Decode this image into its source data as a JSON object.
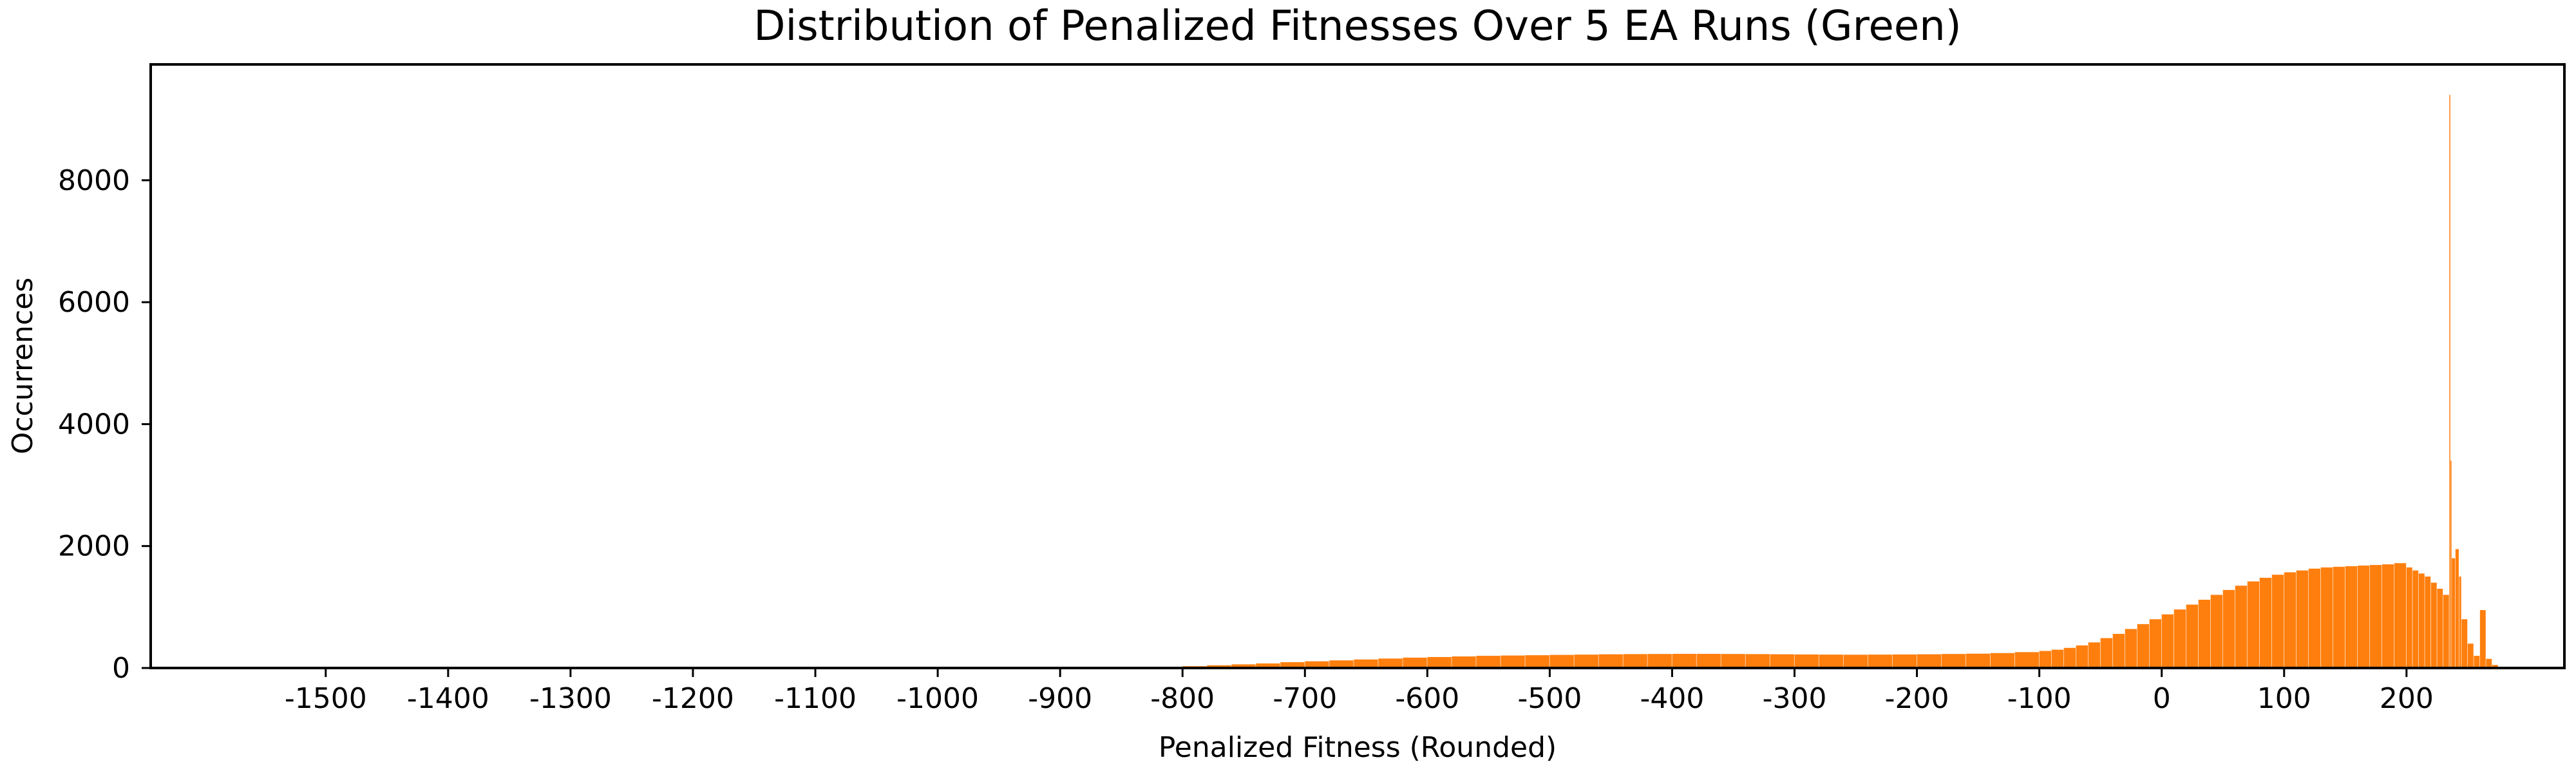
{
  "chart_data": {
    "type": "bar",
    "title": "Distribution of Penalized Fitnesses Over 5 EA Runs (Green)",
    "xlabel": "Penalized Fitness (Rounded)",
    "ylabel": "Occurrences",
    "xlim": [
      -1643,
      329
    ],
    "ylim": [
      0,
      9900
    ],
    "x_ticks": [
      -1500,
      -1400,
      -1300,
      -1200,
      -1100,
      -1000,
      -900,
      -800,
      -700,
      -600,
      -500,
      -400,
      -300,
      -200,
      -100,
      0,
      100,
      200
    ],
    "y_ticks": [
      0,
      2000,
      4000,
      6000,
      8000
    ],
    "bar_color": "#ff7f0e",
    "grid": false,
    "legend": false,
    "series": [
      {
        "values_note": "",
        "x": [
          -860,
          -840,
          -820,
          -800,
          -780,
          -760,
          -740,
          -720,
          -700,
          -680,
          -660,
          -640,
          -620,
          -600,
          -580,
          -560,
          -540,
          -520,
          -500,
          -480,
          -460,
          -440,
          -420,
          -400,
          -380,
          -360,
          -340,
          -320,
          -300,
          -280,
          -260,
          -240,
          -220,
          -200,
          -180,
          -160,
          -140,
          -120,
          -100,
          -90,
          -80,
          -70,
          -60,
          -50,
          -40,
          -30,
          -20,
          -10,
          0,
          10,
          20,
          30,
          40,
          50,
          60,
          70,
          80,
          90,
          100,
          110,
          120,
          130,
          140,
          150,
          160,
          170,
          180,
          190,
          200,
          205,
          210,
          215,
          220,
          225,
          230,
          235,
          236,
          237,
          240,
          243,
          245,
          250,
          255,
          260,
          265,
          270
        ],
        "y": [
          5,
          10,
          20,
          30,
          45,
          60,
          75,
          95,
          110,
          125,
          140,
          155,
          170,
          180,
          190,
          200,
          205,
          210,
          215,
          220,
          225,
          228,
          230,
          232,
          232,
          230,
          228,
          225,
          222,
          220,
          218,
          220,
          222,
          225,
          230,
          235,
          245,
          260,
          280,
          300,
          330,
          370,
          420,
          490,
          560,
          640,
          720,
          800,
          880,
          960,
          1040,
          1120,
          1200,
          1280,
          1350,
          1420,
          1480,
          1530,
          1570,
          1600,
          1630,
          1650,
          1660,
          1670,
          1680,
          1690,
          1700,
          1720,
          1650,
          1600,
          1550,
          1500,
          1400,
          1300,
          1200,
          9400,
          3400,
          1800,
          1950,
          1500,
          800,
          400,
          200,
          950,
          150,
          50
        ]
      }
    ]
  }
}
